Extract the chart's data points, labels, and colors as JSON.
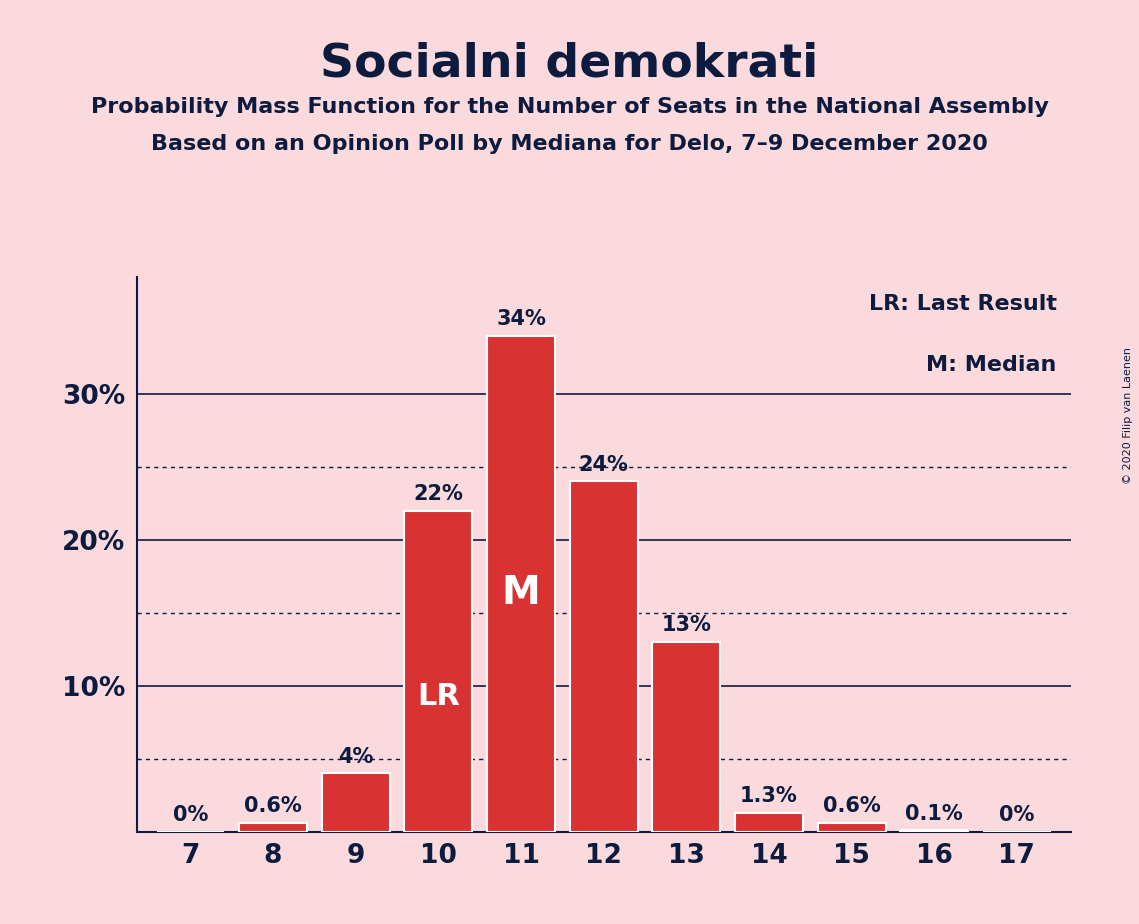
{
  "title": "Socialni demokrati",
  "subtitle1": "Probability Mass Function for the Number of Seats in the National Assembly",
  "subtitle2": "Based on an Opinion Poll by Mediana for Delo, 7–9 December 2020",
  "copyright": "© 2020 Filip van Laenen",
  "categories": [
    7,
    8,
    9,
    10,
    11,
    12,
    13,
    14,
    15,
    16,
    17
  ],
  "values": [
    0.0,
    0.6,
    4.0,
    22.0,
    34.0,
    24.0,
    13.0,
    1.3,
    0.6,
    0.1,
    0.0
  ],
  "bar_color": "#D93232",
  "bar_edge_color": "#ffffff",
  "background_color": "#FADADD",
  "text_color": "#0D1B3E",
  "yticks": [
    0,
    10,
    20,
    30
  ],
  "ymax": 38,
  "legend_lr_text": "LR: Last Result",
  "legend_m_text": "M: Median",
  "lr_bar": 10,
  "median_bar": 11,
  "bar_labels": [
    "0%",
    "0.6%",
    "4%",
    "22%",
    "34%",
    "24%",
    "13%",
    "1.3%",
    "0.6%",
    "0.1%",
    "0%"
  ],
  "dotted_lines": [
    5.0,
    15.0,
    25.0
  ],
  "solid_lines": [
    10,
    20,
    30
  ]
}
